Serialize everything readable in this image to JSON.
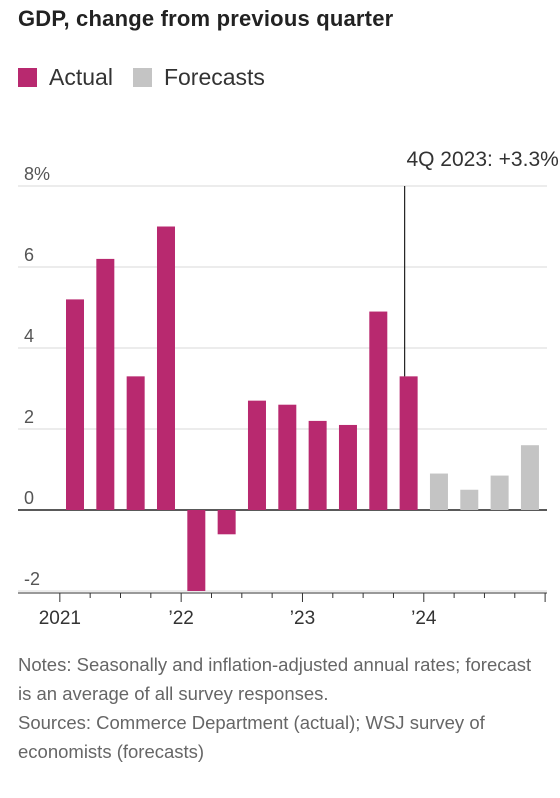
{
  "chart_data": {
    "type": "bar",
    "title": "GDP, change from previous quarter",
    "series": [
      {
        "name": "Actual",
        "color": "#b8296f",
        "values": [
          5.2,
          6.2,
          3.3,
          7.0,
          -2.0,
          -0.6,
          2.7,
          2.6,
          2.2,
          2.1,
          4.9,
          3.3,
          null,
          null,
          null,
          null
        ]
      },
      {
        "name": "Forecasts",
        "color": "#c4c4c4",
        "values": [
          null,
          null,
          null,
          null,
          null,
          null,
          null,
          null,
          null,
          null,
          null,
          null,
          0.9,
          0.5,
          0.85,
          1.6
        ]
      }
    ],
    "x_tick_labels": [
      "2021",
      "’22",
      "’23",
      "’24"
    ],
    "y_ticks": [
      -2,
      0,
      2,
      4,
      6,
      8
    ],
    "y_tick_labels": [
      "-2",
      "0",
      "2",
      "4",
      "6",
      "8%"
    ],
    "ylim": [
      -2,
      8
    ],
    "grid": true,
    "legend_position": "top-left",
    "annotation": {
      "label": "4Q 2023: +3.3%"
    }
  },
  "notes": "Notes: Seasonally and inflation-adjusted annual rates; forecast is an average of all survey responses.",
  "sources": "Sources: Commerce Department (actual); WSJ survey of economists (forecasts)"
}
